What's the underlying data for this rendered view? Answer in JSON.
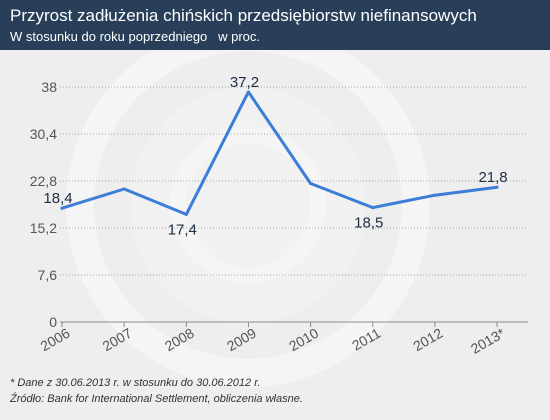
{
  "theme": {
    "header_bg": "#283e59",
    "background": "#eeeeee"
  },
  "chart_data": {
    "type": "line",
    "title": "Przyrost zadłużenia chińskich przedsiębiorstw niefinansowych",
    "subtitle": "W stosunku do roku poprzedniego   w proc.",
    "categories": [
      "2006",
      "2007",
      "2008",
      "2009",
      "2010",
      "2011",
      "2012",
      "2013*"
    ],
    "series": [
      {
        "values": [
          18.4,
          21.5,
          17.4,
          37.2,
          22.4,
          18.5,
          20.5,
          21.8
        ],
        "data_labels": [
          "18,4",
          null,
          "17,4",
          "37,2",
          null,
          "18,5",
          null,
          "21,8"
        ],
        "color": "#3b7dd8"
      }
    ],
    "ylim": [
      0,
      38
    ],
    "y_ticks": [
      0,
      7.6,
      15.2,
      22.8,
      30.4,
      38
    ],
    "y_tick_labels": [
      "0",
      "7,6",
      "15,2",
      "22,8",
      "30,4",
      "38"
    ],
    "grid": true
  },
  "footer": {
    "note": "* Dane z 30.06.2013 r. w stosunku do 30.06.2012 r.",
    "source": "Źródło: Bank for International Settlement, obliczenia własne."
  }
}
